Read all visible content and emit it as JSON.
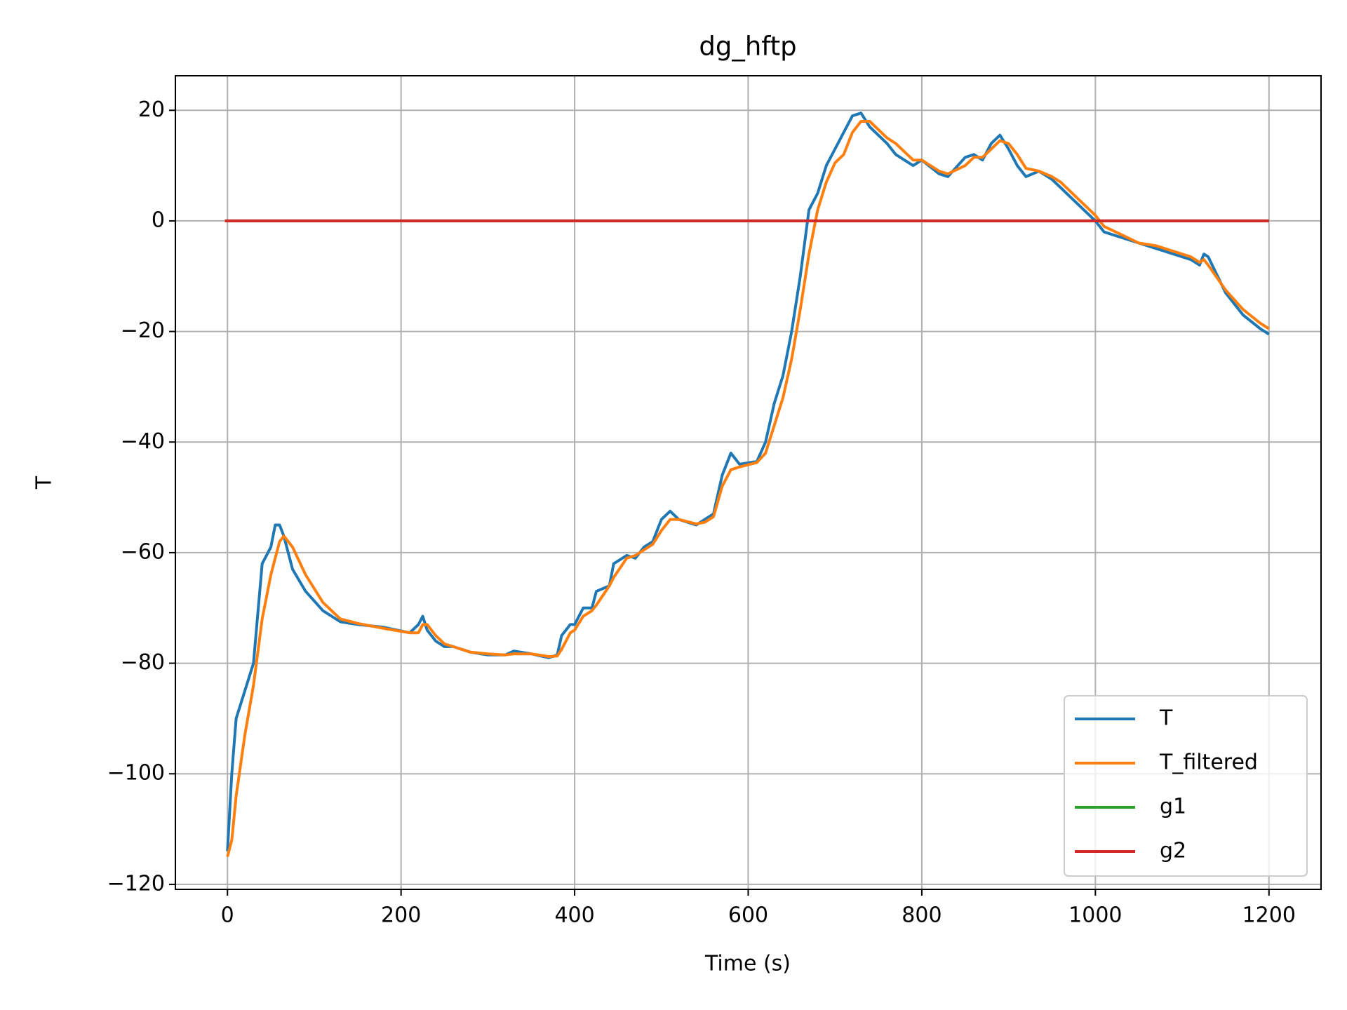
{
  "chart_data": {
    "type": "line",
    "title": "dg_hftp",
    "xlabel": "Time (s)",
    "ylabel": "T",
    "xlim": [
      -60,
      1260
    ],
    "ylim": [
      -120.9,
      26.25
    ],
    "xticks": [
      0,
      200,
      400,
      600,
      800,
      1000,
      1200
    ],
    "yticks": [
      {
        "value": -120,
        "label": "−120"
      },
      {
        "value": -100,
        "label": "−100"
      },
      {
        "value": -80,
        "label": "−80"
      },
      {
        "value": -60,
        "label": "−60"
      },
      {
        "value": -40,
        "label": "−40"
      },
      {
        "value": -20,
        "label": "−20"
      },
      0,
      20
    ],
    "grid": true,
    "legend": "lower right",
    "series": [
      {
        "name": "T",
        "color": "#1f77b4",
        "x": [
          0,
          5,
          10,
          20,
          30,
          40,
          50,
          55,
          60,
          65,
          75,
          90,
          110,
          130,
          150,
          180,
          210,
          220,
          225,
          230,
          240,
          250,
          260,
          280,
          300,
          320,
          330,
          350,
          370,
          380,
          385,
          395,
          400,
          410,
          420,
          425,
          440,
          445,
          460,
          470,
          480,
          490,
          500,
          510,
          520,
          540,
          550,
          560,
          570,
          580,
          590,
          610,
          620,
          630,
          640,
          650,
          660,
          670,
          680,
          690,
          700,
          710,
          720,
          730,
          740,
          760,
          770,
          790,
          800,
          820,
          830,
          850,
          860,
          870,
          880,
          890,
          900,
          910,
          920,
          935,
          950,
          960,
          980,
          1000,
          1010,
          1030,
          1050,
          1070,
          1090,
          1110,
          1120,
          1125,
          1130,
          1150,
          1170,
          1190,
          1200
        ],
        "values": [
          -114,
          -100,
          -90,
          -85,
          -80,
          -62,
          -59,
          -55,
          -55,
          -57,
          -63,
          -67,
          -70.5,
          -72.5,
          -73,
          -73.5,
          -74.5,
          -73,
          -71.5,
          -74,
          -76,
          -77,
          -77,
          -78,
          -78.5,
          -78.5,
          -77.8,
          -78.3,
          -79,
          -78.5,
          -75,
          -73,
          -73,
          -70,
          -70,
          -67,
          -66,
          -62,
          -60.5,
          -61,
          -59,
          -58,
          -54,
          -52.5,
          -54,
          -55,
          -54,
          -53,
          -46,
          -42,
          -44,
          -43.5,
          -40,
          -33,
          -28,
          -20,
          -10,
          2,
          5,
          10,
          13,
          16,
          19,
          19.5,
          17,
          14,
          12,
          10,
          11,
          8.5,
          8,
          11.5,
          12,
          11,
          14,
          15.5,
          13,
          10,
          8,
          9,
          7.5,
          6,
          3,
          0,
          -2,
          -3,
          -4,
          -5,
          -6,
          -7,
          -8,
          -6,
          -6.5,
          -13,
          -17,
          -19.5,
          -20.5
        ]
      },
      {
        "name": "T_filtered",
        "color": "#ff7f0e",
        "x": [
          0,
          5,
          10,
          20,
          30,
          40,
          50,
          55,
          60,
          65,
          75,
          90,
          110,
          130,
          150,
          180,
          210,
          220,
          225,
          230,
          240,
          250,
          260,
          280,
          300,
          320,
          330,
          350,
          370,
          380,
          385,
          395,
          400,
          410,
          420,
          425,
          440,
          445,
          460,
          470,
          480,
          490,
          500,
          510,
          520,
          540,
          550,
          560,
          570,
          580,
          590,
          610,
          620,
          630,
          640,
          650,
          660,
          670,
          680,
          690,
          700,
          710,
          720,
          730,
          740,
          760,
          770,
          790,
          800,
          820,
          830,
          850,
          860,
          870,
          880,
          890,
          900,
          910,
          920,
          935,
          950,
          960,
          980,
          1000,
          1010,
          1030,
          1050,
          1070,
          1090,
          1110,
          1120,
          1125,
          1130,
          1150,
          1170,
          1190,
          1200
        ],
        "values": [
          -115,
          -112,
          -104,
          -93,
          -84,
          -72,
          -64,
          -61,
          -58,
          -57,
          -59,
          -64,
          -69,
          -72,
          -72.8,
          -73.7,
          -74.5,
          -74.5,
          -73,
          -73,
          -75,
          -76.5,
          -77,
          -78,
          -78.3,
          -78.5,
          -78.3,
          -78.3,
          -78.8,
          -78.7,
          -77.5,
          -74.5,
          -74,
          -71.5,
          -70.5,
          -69.5,
          -66,
          -64.5,
          -61,
          -60.5,
          -59.5,
          -58.5,
          -56,
          -54,
          -54,
          -54.8,
          -54.5,
          -53.5,
          -48,
          -45,
          -44.5,
          -43.7,
          -42,
          -37,
          -32,
          -25,
          -16,
          -6,
          2,
          7,
          10.5,
          12,
          16,
          18,
          18,
          15,
          14,
          11,
          11,
          9,
          8.5,
          10,
          11.5,
          11.5,
          13,
          14.5,
          14,
          12,
          9.5,
          9,
          8,
          7,
          4,
          1,
          -1,
          -2.5,
          -4,
          -4.5,
          -5.5,
          -6.5,
          -7.5,
          -7,
          -8,
          -12.5,
          -16,
          -18.5,
          -19.5
        ]
      },
      {
        "name": "g1",
        "color": "#2ca02c",
        "x": [
          -3,
          1200
        ],
        "values": [
          0,
          0
        ]
      },
      {
        "name": "g2",
        "color": "#d62728",
        "x": [
          -3,
          1200
        ],
        "values": [
          0,
          0
        ]
      }
    ]
  }
}
